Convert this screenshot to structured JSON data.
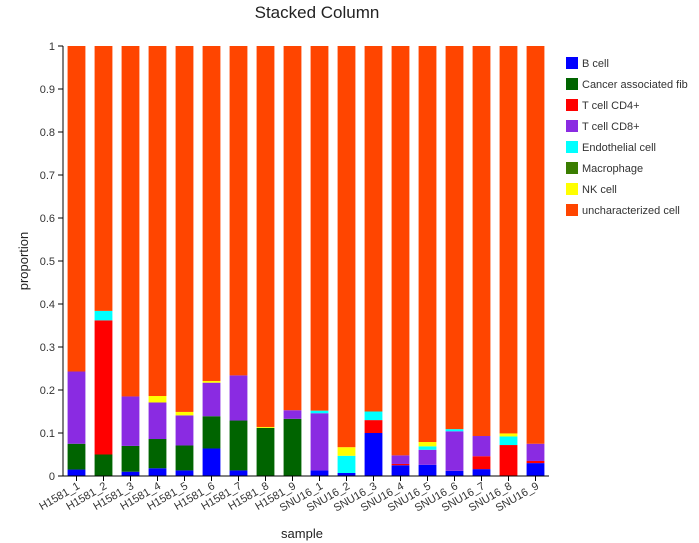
{
  "chart_data": {
    "type": "bar",
    "stacked": true,
    "title": "Stacked Column",
    "xlabel": "sample",
    "ylabel": "proportion",
    "ylim": [
      0,
      1
    ],
    "yticks": [
      "0",
      "0.1",
      "0.2",
      "0.3",
      "0.4",
      "0.5",
      "0.6",
      "0.7",
      "0.8",
      "0.9",
      "1"
    ],
    "categories": [
      "H1581_1",
      "H1581_2",
      "H1581_3",
      "H1581_4",
      "H1581_5",
      "H1581_6",
      "H1581_7",
      "H1581_8",
      "H1581_9",
      "SNU16_1",
      "SNU16_2",
      "SNU16_3",
      "SNU16_4",
      "SNU16_5",
      "SNU16_6",
      "SNU16_7",
      "SNU16_8",
      "SNU16_9"
    ],
    "legend_position": "right",
    "series": [
      {
        "name": "B cell",
        "color": "#0000ff",
        "values": [
          0.015,
          0,
          0.01,
          0.018,
          0.013,
          0.064,
          0.013,
          0,
          0,
          0.013,
          0.007,
          0.1,
          0.025,
          0.026,
          0.012,
          0.016,
          0,
          0.03
        ]
      },
      {
        "name": "Cancer associated fib",
        "color": "#006400",
        "values": [
          0.06,
          0.05,
          0.06,
          0.068,
          0.058,
          0.075,
          0.116,
          0.112,
          0.133,
          0,
          0,
          0,
          0,
          0,
          0,
          0,
          0,
          0
        ]
      },
      {
        "name": "T cell CD4+",
        "color": "#ff0000",
        "values": [
          0,
          0.312,
          0,
          0,
          0,
          0,
          0,
          0,
          0,
          0,
          0,
          0.03,
          0.003,
          0,
          0,
          0.03,
          0.072,
          0.005
        ]
      },
      {
        "name": "T cell CD8+",
        "color": "#8a2be2",
        "values": [
          0.168,
          0,
          0.115,
          0.085,
          0.07,
          0.078,
          0.105,
          0,
          0.02,
          0.133,
          0,
          0,
          0.02,
          0.035,
          0.092,
          0.047,
          0,
          0.04
        ]
      },
      {
        "name": "Endothelial cell",
        "color": "#00ffff",
        "values": [
          0,
          0.022,
          0,
          0,
          0,
          0,
          0,
          0,
          0,
          0.006,
          0.04,
          0.02,
          0,
          0.008,
          0.005,
          0,
          0.02,
          0
        ]
      },
      {
        "name": "Macrophage",
        "color": "#3a7d00",
        "values": [
          0,
          0,
          0,
          0,
          0,
          0,
          0,
          0,
          0,
          0,
          0,
          0,
          0,
          0,
          0,
          0,
          0,
          0
        ]
      },
      {
        "name": "NK cell",
        "color": "#ffff00",
        "values": [
          0,
          0,
          0,
          0.015,
          0.008,
          0.004,
          0,
          0.002,
          0,
          0,
          0.02,
          0,
          0,
          0.01,
          0,
          0,
          0.007,
          0
        ]
      },
      {
        "name": "uncharacterized cell",
        "color": "#ff4500",
        "values": [
          0.757,
          0.616,
          0.815,
          0.814,
          0.851,
          0.779,
          0.766,
          0.886,
          0.847,
          0.848,
          0.933,
          0.85,
          0.952,
          0.921,
          0.891,
          0.907,
          0.901,
          0.925
        ]
      }
    ]
  }
}
